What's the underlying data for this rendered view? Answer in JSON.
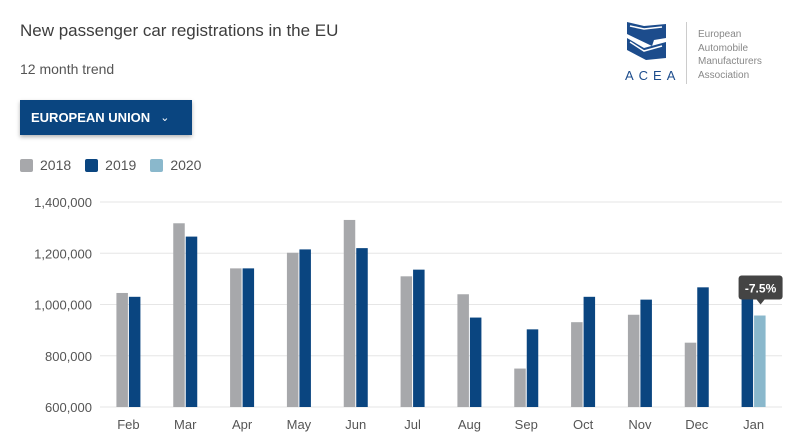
{
  "header": {
    "title": "New passenger car registrations in the EU",
    "subtitle": "12 month trend"
  },
  "region_selector": {
    "label": "EUROPEAN UNION",
    "icon": "chevron-down-icon"
  },
  "logo": {
    "acronym": "ACEA",
    "org_lines": [
      "European",
      "Automobile",
      "Manufacturers",
      "Association"
    ]
  },
  "chart_data": {
    "type": "bar",
    "title": "New passenger car registrations in the EU",
    "subtitle": "12 month trend",
    "xlabel": "",
    "ylabel": "",
    "ylim": [
      600000,
      1400000
    ],
    "yticks": [
      600000,
      800000,
      1000000,
      1200000,
      1400000
    ],
    "ytick_labels": [
      "600,000",
      "800,000",
      "1,000,000",
      "1,200,000",
      "1,400,000"
    ],
    "grid": true,
    "legend_placement": "top-left",
    "categories": [
      "Feb",
      "Mar",
      "Apr",
      "May",
      "Jun",
      "Jul",
      "Aug",
      "Sep",
      "Oct",
      "Nov",
      "Dec",
      "Jan"
    ],
    "series": [
      {
        "name": "2018",
        "color": "#a7a8ab",
        "values": [
          1045000,
          1317000,
          1141000,
          1202000,
          1330000,
          1110000,
          1040000,
          750000,
          931000,
          960000,
          851000,
          null
        ]
      },
      {
        "name": "2019",
        "color": "#0a4580",
        "values": [
          1030000,
          1265000,
          1141000,
          1215000,
          1220000,
          1136000,
          949000,
          903000,
          1030000,
          1019000,
          1067000,
          1035000
        ]
      },
      {
        "name": "2020",
        "color": "#8ab8cc",
        "values": [
          null,
          null,
          null,
          null,
          null,
          null,
          null,
          null,
          null,
          null,
          null,
          957000
        ]
      }
    ],
    "tooltip": {
      "category": "Jan",
      "text": "-7.5%"
    }
  }
}
